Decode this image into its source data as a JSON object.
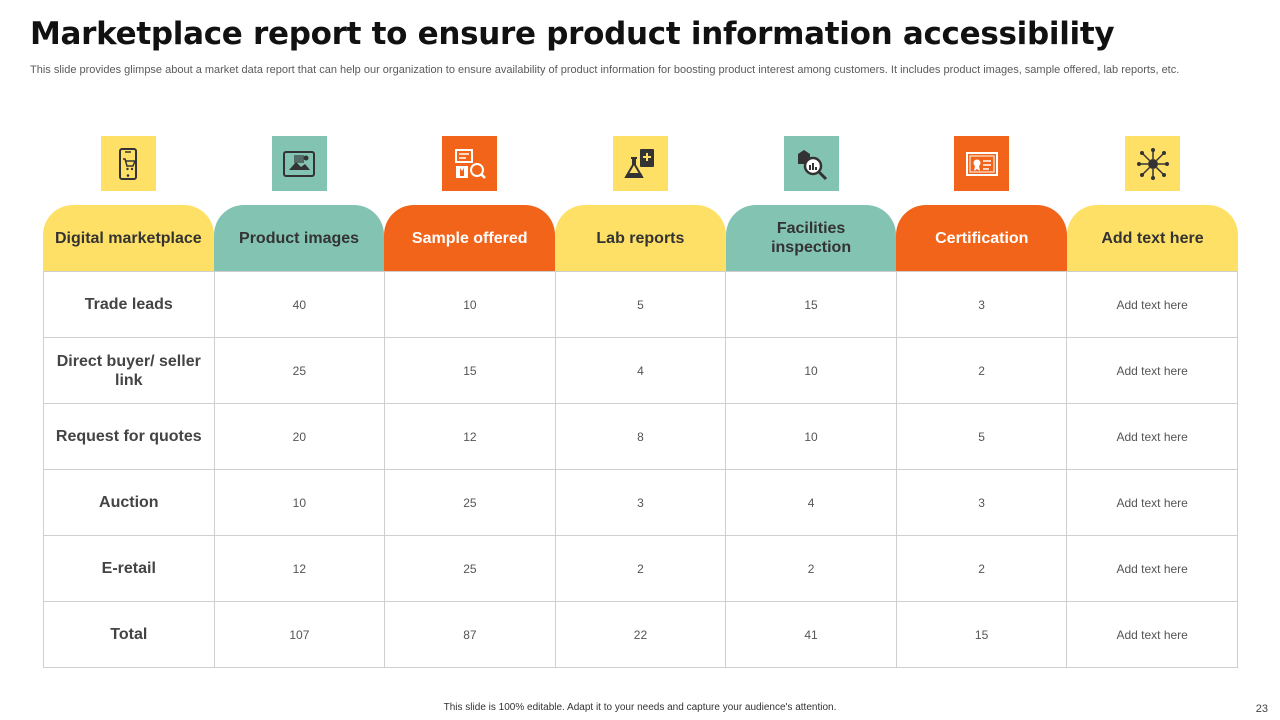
{
  "title": "Marketplace report to ensure product information accessibility",
  "subtitle": "This slide provides glimpse about a market data report that can help our organization to ensure availability of product information for boosting product interest among customers. It includes product images, sample offered, lab reports, etc.",
  "colors": {
    "yellow": "#FFE066",
    "teal": "#83C3B1",
    "orange": "#F26419"
  },
  "icons": [
    {
      "name": "mobile-cart-icon",
      "color": "yellow"
    },
    {
      "name": "product-image-icon",
      "color": "teal"
    },
    {
      "name": "sample-box-icon",
      "color": "orange"
    },
    {
      "name": "lab-flask-icon",
      "color": "yellow"
    },
    {
      "name": "inspection-magnifier-icon",
      "color": "teal"
    },
    {
      "name": "certificate-icon",
      "color": "orange"
    },
    {
      "name": "network-hub-icon",
      "color": "yellow"
    }
  ],
  "headers": [
    {
      "label": "Digital marketplace",
      "color": "yellow"
    },
    {
      "label": "Product images",
      "color": "teal"
    },
    {
      "label": "Sample offered",
      "color": "orange"
    },
    {
      "label": "Lab reports",
      "color": "yellow"
    },
    {
      "label": "Facilities inspection",
      "color": "teal"
    },
    {
      "label": "Certification",
      "color": "orange"
    },
    {
      "label": "Add text here",
      "color": "yellow"
    }
  ],
  "rows": [
    {
      "label": "Trade leads",
      "values": [
        "40",
        "10",
        "5",
        "15",
        "3",
        "Add text here"
      ]
    },
    {
      "label": "Direct buyer/ seller link",
      "values": [
        "25",
        "15",
        "4",
        "10",
        "2",
        "Add text here"
      ]
    },
    {
      "label": "Request for quotes",
      "values": [
        "20",
        "12",
        "8",
        "10",
        "5",
        "Add text here"
      ]
    },
    {
      "label": "Auction",
      "values": [
        "10",
        "25",
        "3",
        "4",
        "3",
        "Add text here"
      ]
    },
    {
      "label": "E-retail",
      "values": [
        "12",
        "25",
        "2",
        "2",
        "2",
        "Add text here"
      ]
    },
    {
      "label": "Total",
      "values": [
        "107",
        "87",
        "22",
        "41",
        "15",
        "Add text here"
      ]
    }
  ],
  "footer": "This slide is 100% editable. Adapt it to your needs and capture your audience's attention.",
  "page_number": "23"
}
